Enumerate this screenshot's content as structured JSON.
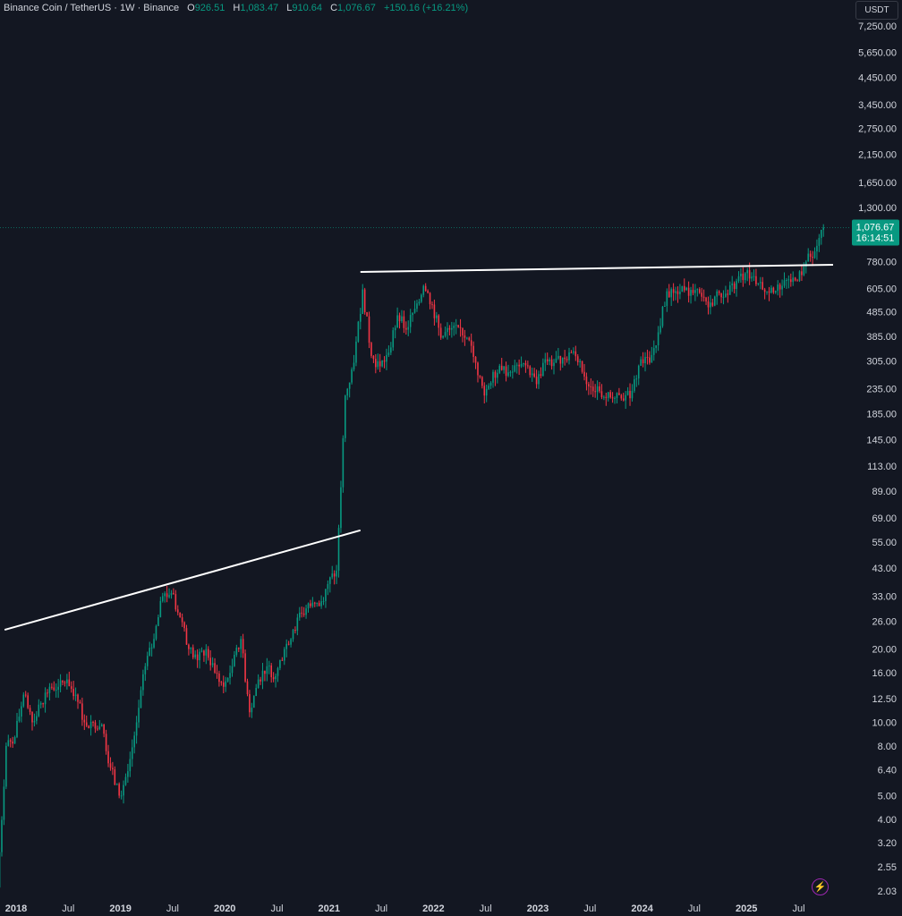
{
  "header": {
    "symbol": "Binance Coin / TetherUS · 1W · Binance",
    "o_label": "O",
    "o": "926.51",
    "h_label": "H",
    "h": "1,083.47",
    "l_label": "L",
    "l": "910.64",
    "c_label": "C",
    "c": "1,076.67",
    "change": "+150.16 (+16.21%)",
    "currency": "USDT"
  },
  "price_label": {
    "value": "1,076.67",
    "countdown": "16:14:51"
  },
  "colors": {
    "up": "#089981",
    "down": "#f23645",
    "background": "#131722",
    "text": "#d1d4dc",
    "trendline": "#ffffff",
    "icon": "#9c27b0"
  },
  "chart_data": {
    "type": "candlestick",
    "title": "Binance Coin / TetherUS · 1W · Binance",
    "yscale": "log",
    "ylim": [
      2.03,
      7250
    ],
    "y_ticks": [
      "7,250.00",
      "5,650.00",
      "4,450.00",
      "3,450.00",
      "2,750.00",
      "2,150.00",
      "1,650.00",
      "1,300.00",
      "780.00",
      "605.00",
      "485.00",
      "385.00",
      "305.00",
      "235.00",
      "185.00",
      "145.00",
      "113.00",
      "89.00",
      "69.00",
      "55.00",
      "43.00",
      "33.00",
      "26.00",
      "20.00",
      "16.00",
      "12.50",
      "10.00",
      "8.00",
      "6.40",
      "5.00",
      "4.00",
      "3.20",
      "2.55",
      "2.03"
    ],
    "x_ticks": [
      "2018",
      "Jul",
      "2019",
      "Jul",
      "2020",
      "Jul",
      "2021",
      "Jul",
      "2022",
      "Jul",
      "2023",
      "Jul",
      "2024",
      "Jul",
      "2025",
      "Jul"
    ],
    "start_month": "2017-11",
    "first_open": 2.1,
    "monthly_closes": [
      8,
      8.7,
      13,
      10,
      12,
      14,
      14,
      15,
      13,
      10,
      10,
      9.8,
      6.5,
      5.0,
      6.3,
      10,
      17,
      22,
      33,
      34,
      27,
      20,
      18,
      20,
      16,
      14,
      17,
      22,
      11,
      15,
      17,
      15.5,
      20,
      24,
      28,
      30,
      30,
      37,
      42,
      220,
      300,
      600,
      320,
      290,
      330,
      470,
      410,
      500,
      620,
      520,
      380,
      410,
      420,
      380,
      300,
      220,
      275,
      280,
      275,
      290,
      290,
      245,
      310,
      300,
      315,
      330,
      305,
      240,
      240,
      215,
      215,
      210,
      230,
      310,
      300,
      400,
      590,
      590,
      595,
      580,
      560,
      530,
      580,
      570,
      650,
      700,
      680,
      600,
      610,
      600,
      660,
      650,
      780,
      860,
      1076.67
    ],
    "last_price": 1076.67,
    "trendlines": [
      {
        "from": {
          "t": 2017.89,
          "price": 24
        },
        "to": {
          "t": 2021.3,
          "price": 61.5
        }
      },
      {
        "from": {
          "t": 2021.3,
          "price": 708
        },
        "to": {
          "t": 2025.83,
          "price": 758
        }
      }
    ]
  },
  "icons": {
    "bolt": "lightning-icon"
  }
}
